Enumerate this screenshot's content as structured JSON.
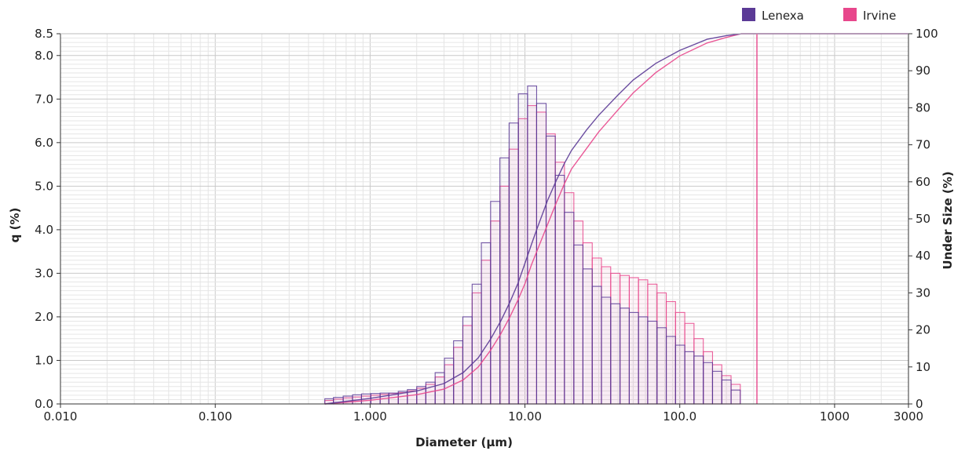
{
  "chart_data": {
    "type": "bar",
    "xlabel": "Diameter (µm)",
    "ylabel_left": "q (%)",
    "ylabel_right": "Under Size (%)",
    "x_scale": "log",
    "xlim": [
      0.01,
      3000
    ],
    "ylim_left": [
      0,
      8.5
    ],
    "ylim_right": [
      0,
      100
    ],
    "x_ticks": [
      {
        "value": 0.01,
        "label": "0.010"
      },
      {
        "value": 0.1,
        "label": "0.100"
      },
      {
        "value": 1,
        "label": "1.000"
      },
      {
        "value": 10,
        "label": "10.00"
      },
      {
        "value": 100,
        "label": "100.0"
      },
      {
        "value": 1000,
        "label": "1000"
      },
      {
        "value": 3000,
        "label": "3000"
      }
    ],
    "y_ticks_left": [
      {
        "value": 0,
        "label": "0.0"
      },
      {
        "value": 1,
        "label": "1.0"
      },
      {
        "value": 2,
        "label": "2.0"
      },
      {
        "value": 3,
        "label": "3.0"
      },
      {
        "value": 4,
        "label": "4.0"
      },
      {
        "value": 5,
        "label": "5.0"
      },
      {
        "value": 6,
        "label": "6.0"
      },
      {
        "value": 7,
        "label": "7.0"
      },
      {
        "value": 8,
        "label": "8.0"
      },
      {
        "value": 8.5,
        "label": "8.5"
      }
    ],
    "y_ticks_right": [
      {
        "value": 0,
        "label": "0"
      },
      {
        "value": 10,
        "label": "10"
      },
      {
        "value": 20,
        "label": "20"
      },
      {
        "value": 30,
        "label": "30"
      },
      {
        "value": 40,
        "label": "40"
      },
      {
        "value": 50,
        "label": "50"
      },
      {
        "value": 60,
        "label": "60"
      },
      {
        "value": 70,
        "label": "70"
      },
      {
        "value": 80,
        "label": "80"
      },
      {
        "value": 90,
        "label": "90"
      },
      {
        "value": 100,
        "label": "100"
      }
    ],
    "grid": true,
    "legend_position": "top-right",
    "bin_edges": [
      0.51,
      0.58,
      0.67,
      0.77,
      0.88,
      1.01,
      1.16,
      1.32,
      1.52,
      1.74,
      2.0,
      2.29,
      2.63,
      3.02,
      3.46,
      3.97,
      4.56,
      5.23,
      6.0,
      6.89,
      7.9,
      9.07,
      10.4,
      11.9,
      13.7,
      15.7,
      18.0,
      20.7,
      23.7,
      27.2,
      31.2,
      35.8,
      41.1,
      47.2,
      54.1,
      62.1,
      71.3,
      81.8,
      93.9,
      107.7,
      123.6,
      141.9,
      162.8,
      186.8,
      214.4,
      246.0,
      282.3
    ],
    "series": [
      {
        "name": "Lenexa",
        "color": "#5b3a96",
        "q": [
          0.12,
          0.15,
          0.18,
          0.21,
          0.23,
          0.24,
          0.25,
          0.25,
          0.29,
          0.33,
          0.4,
          0.5,
          0.72,
          1.05,
          1.45,
          2.0,
          2.75,
          3.7,
          4.65,
          5.65,
          6.45,
          7.12,
          7.3,
          6.9,
          6.15,
          5.25,
          4.4,
          3.65,
          3.1,
          2.7,
          2.45,
          2.3,
          2.2,
          2.1,
          2.0,
          1.9,
          1.75,
          1.55,
          1.35,
          1.2,
          1.1,
          0.95,
          0.75,
          0.55,
          0.32,
          0.0
        ],
        "under_size": {
          "x": [
            0.51,
            1.0,
            2.0,
            3.0,
            4.0,
            5.0,
            6.0,
            7.0,
            8.0,
            9.0,
            10.0,
            11.0,
            12.0,
            14.0,
            16.0,
            18.0,
            20.0,
            25.0,
            30.0,
            40.0,
            50.0,
            70.0,
            100.0,
            150.0,
            200.0,
            250.0,
            282.3,
            3000
          ],
          "y": [
            0,
            1.5,
            3.5,
            5.5,
            8.5,
            12.5,
            17.5,
            22.5,
            27.5,
            32.5,
            38.0,
            43.0,
            47.5,
            55.0,
            60.5,
            65.0,
            68.5,
            74.0,
            78.0,
            83.5,
            87.5,
            92.0,
            95.5,
            98.5,
            99.5,
            100,
            100,
            100
          ]
        }
      },
      {
        "name": "Irvine",
        "color": "#e8478c",
        "q": [
          0.08,
          0.11,
          0.14,
          0.16,
          0.18,
          0.2,
          0.22,
          0.24,
          0.26,
          0.3,
          0.36,
          0.45,
          0.62,
          0.9,
          1.3,
          1.8,
          2.55,
          3.3,
          4.2,
          5.0,
          5.85,
          6.55,
          6.85,
          6.7,
          6.2,
          5.55,
          4.85,
          4.2,
          3.7,
          3.35,
          3.15,
          3.0,
          2.95,
          2.9,
          2.85,
          2.75,
          2.55,
          2.35,
          2.1,
          1.85,
          1.5,
          1.2,
          0.9,
          0.65,
          0.45,
          0.0
        ],
        "under_size": {
          "x": [
            0.51,
            1.0,
            2.0,
            3.0,
            4.0,
            5.0,
            6.0,
            7.0,
            8.0,
            9.0,
            10.0,
            11.0,
            12.0,
            14.0,
            16.0,
            18.0,
            20.0,
            25.0,
            30.0,
            40.0,
            50.0,
            70.0,
            100.0,
            150.0,
            200.0,
            250.0,
            282.3,
            3000
          ],
          "y": [
            0,
            1.0,
            2.5,
            4.0,
            6.5,
            10.0,
            14.5,
            19.0,
            23.5,
            28.0,
            32.5,
            37.5,
            41.5,
            48.5,
            54.5,
            59.5,
            63.5,
            69.0,
            73.5,
            79.5,
            84.0,
            89.5,
            94.0,
            97.5,
            99.0,
            100,
            100,
            100
          ]
        }
      }
    ],
    "vertical_marker": {
      "x": 315,
      "color": "#e8478c"
    }
  }
}
